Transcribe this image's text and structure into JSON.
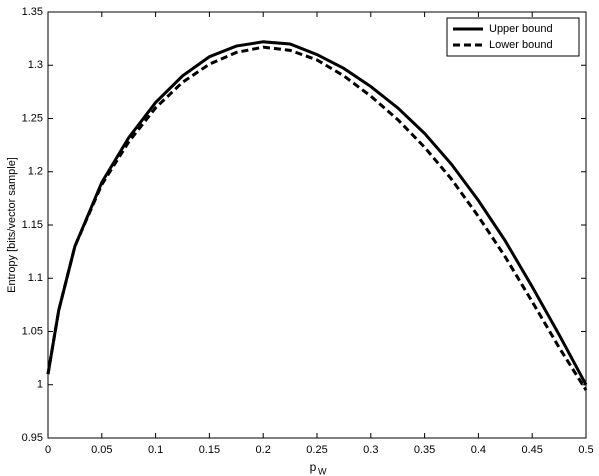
{
  "chart_data": {
    "type": "line",
    "xlabel": "p",
    "xlabel_subscript": "W",
    "ylabel": "Entropy [bits/vector sample]",
    "x": [
      0,
      0.01,
      0.025,
      0.05,
      0.075,
      0.1,
      0.125,
      0.15,
      0.175,
      0.2,
      0.225,
      0.25,
      0.275,
      0.3,
      0.325,
      0.35,
      0.375,
      0.4,
      0.425,
      0.45,
      0.475,
      0.5
    ],
    "series": [
      {
        "name": "Upper bound",
        "color": "#000000",
        "style": "solid",
        "values": [
          1.01,
          1.07,
          1.13,
          1.19,
          1.232,
          1.265,
          1.29,
          1.308,
          1.318,
          1.322,
          1.32,
          1.31,
          1.297,
          1.28,
          1.26,
          1.236,
          1.207,
          1.173,
          1.135,
          1.092,
          1.047,
          1.0
        ]
      },
      {
        "name": "Lower bound",
        "color": "#000000",
        "style": "dashed",
        "values": [
          1.01,
          1.07,
          1.13,
          1.188,
          1.228,
          1.26,
          1.284,
          1.301,
          1.312,
          1.317,
          1.314,
          1.305,
          1.29,
          1.271,
          1.249,
          1.223,
          1.193,
          1.158,
          1.12,
          1.078,
          1.035,
          0.995
        ]
      }
    ],
    "xlim": [
      0,
      0.5
    ],
    "xticks": [
      0,
      0.05,
      0.1,
      0.15,
      0.2,
      0.25,
      0.3,
      0.35,
      0.4,
      0.45,
      0.5
    ],
    "ylim": [
      0.95,
      1.35
    ],
    "yticks": [
      0.95,
      1,
      1.05,
      1.1,
      1.15,
      1.2,
      1.25,
      1.3,
      1.35
    ],
    "grid": false,
    "legend": "upper right"
  }
}
